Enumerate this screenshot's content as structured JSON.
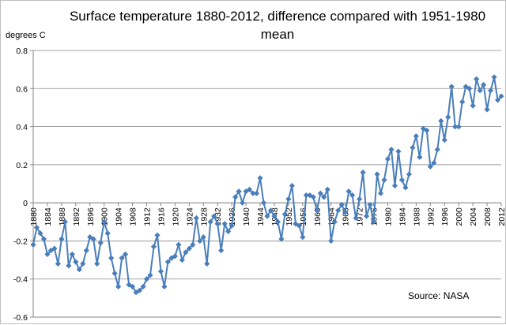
{
  "chart_data": {
    "type": "line",
    "title": "Surface temperature 1880-2012, difference compared with 1951-1980 mean",
    "ylabel": "degrees C",
    "xlabel": "",
    "source": "Source: NASA",
    "ylim": [
      -0.6,
      0.8
    ],
    "yticks": [
      -0.6,
      -0.4,
      -0.2,
      0,
      0.2,
      0.4,
      0.6,
      0.8
    ],
    "ytick_labels": [
      "-0.6",
      "-0.4",
      "-0.2",
      "0",
      "0.2",
      "0.4",
      "0.6",
      "0.8"
    ],
    "xlim": [
      1880,
      2012
    ],
    "xticks": [
      1880,
      1884,
      1888,
      1892,
      1896,
      1900,
      1904,
      1908,
      1912,
      1916,
      1920,
      1924,
      1928,
      1932,
      1936,
      1940,
      1944,
      1948,
      1952,
      1956,
      1960,
      1964,
      1968,
      1972,
      1976,
      1980,
      1984,
      1988,
      1992,
      1996,
      2000,
      2004,
      2008,
      2012
    ],
    "grid": "horizontal",
    "legend": "none",
    "colors": {
      "line": "#4a7ebb",
      "marker": "#4a7ebb",
      "grid": "#868686"
    },
    "series": [
      {
        "x": [
          1880,
          1881,
          1882,
          1883,
          1884,
          1885,
          1886,
          1887,
          1888,
          1889,
          1890,
          1891,
          1892,
          1893,
          1894,
          1895,
          1896,
          1897,
          1898,
          1899,
          1900,
          1901,
          1902,
          1903,
          1904,
          1905,
          1906,
          1907,
          1908,
          1909,
          1910,
          1911,
          1912,
          1913,
          1914,
          1915,
          1916,
          1917,
          1918,
          1919,
          1920,
          1921,
          1922,
          1923,
          1924,
          1925,
          1926,
          1927,
          1928,
          1929,
          1930,
          1931,
          1932,
          1933,
          1934,
          1935,
          1936,
          1937,
          1938,
          1939,
          1940,
          1941,
          1942,
          1943,
          1944,
          1945,
          1946,
          1947,
          1948,
          1949,
          1950,
          1951,
          1952,
          1953,
          1954,
          1955,
          1956,
          1957,
          1958,
          1959,
          1960,
          1961,
          1962,
          1963,
          1964,
          1965,
          1966,
          1967,
          1968,
          1969,
          1970,
          1971,
          1972,
          1973,
          1974,
          1975,
          1976,
          1977,
          1978,
          1979,
          1980,
          1981,
          1982,
          1983,
          1984,
          1985,
          1986,
          1987,
          1988,
          1989,
          1990,
          1991,
          1992,
          1993,
          1994,
          1995,
          1996,
          1997,
          1998,
          1999,
          2000,
          2001,
          2002,
          2003,
          2004,
          2005,
          2006,
          2007,
          2008,
          2009,
          2010,
          2011,
          2012
        ],
        "values": [
          -0.22,
          -0.13,
          -0.16,
          -0.19,
          -0.27,
          -0.25,
          -0.24,
          -0.32,
          -0.19,
          -0.1,
          -0.33,
          -0.27,
          -0.31,
          -0.35,
          -0.32,
          -0.25,
          -0.18,
          -0.19,
          -0.32,
          -0.21,
          -0.1,
          -0.16,
          -0.29,
          -0.37,
          -0.44,
          -0.29,
          -0.27,
          -0.43,
          -0.44,
          -0.47,
          -0.46,
          -0.44,
          -0.4,
          -0.38,
          -0.23,
          -0.17,
          -0.36,
          -0.44,
          -0.31,
          -0.29,
          -0.28,
          -0.22,
          -0.3,
          -0.26,
          -0.24,
          -0.22,
          -0.08,
          -0.2,
          -0.18,
          -0.32,
          -0.1,
          -0.07,
          -0.11,
          -0.25,
          -0.11,
          -0.15,
          -0.12,
          0.03,
          0.06,
          0.0,
          0.06,
          0.07,
          0.05,
          0.05,
          0.13,
          0.0,
          -0.07,
          -0.04,
          -0.07,
          -0.1,
          -0.19,
          -0.06,
          0.02,
          0.09,
          -0.11,
          -0.12,
          -0.18,
          0.04,
          0.04,
          0.03,
          -0.04,
          0.05,
          0.03,
          0.07,
          -0.2,
          -0.1,
          -0.04,
          -0.01,
          -0.05,
          0.06,
          0.04,
          -0.08,
          0.02,
          0.16,
          -0.07,
          -0.01,
          -0.1,
          0.15,
          0.05,
          0.12,
          0.23,
          0.28,
          0.09,
          0.27,
          0.12,
          0.08,
          0.15,
          0.29,
          0.35,
          0.24,
          0.39,
          0.38,
          0.19,
          0.21,
          0.28,
          0.43,
          0.33,
          0.45,
          0.61,
          0.4,
          0.4,
          0.53,
          0.61,
          0.6,
          0.51,
          0.65,
          0.59,
          0.62,
          0.49,
          0.59,
          0.66,
          0.54,
          0.56
        ]
      }
    ]
  }
}
